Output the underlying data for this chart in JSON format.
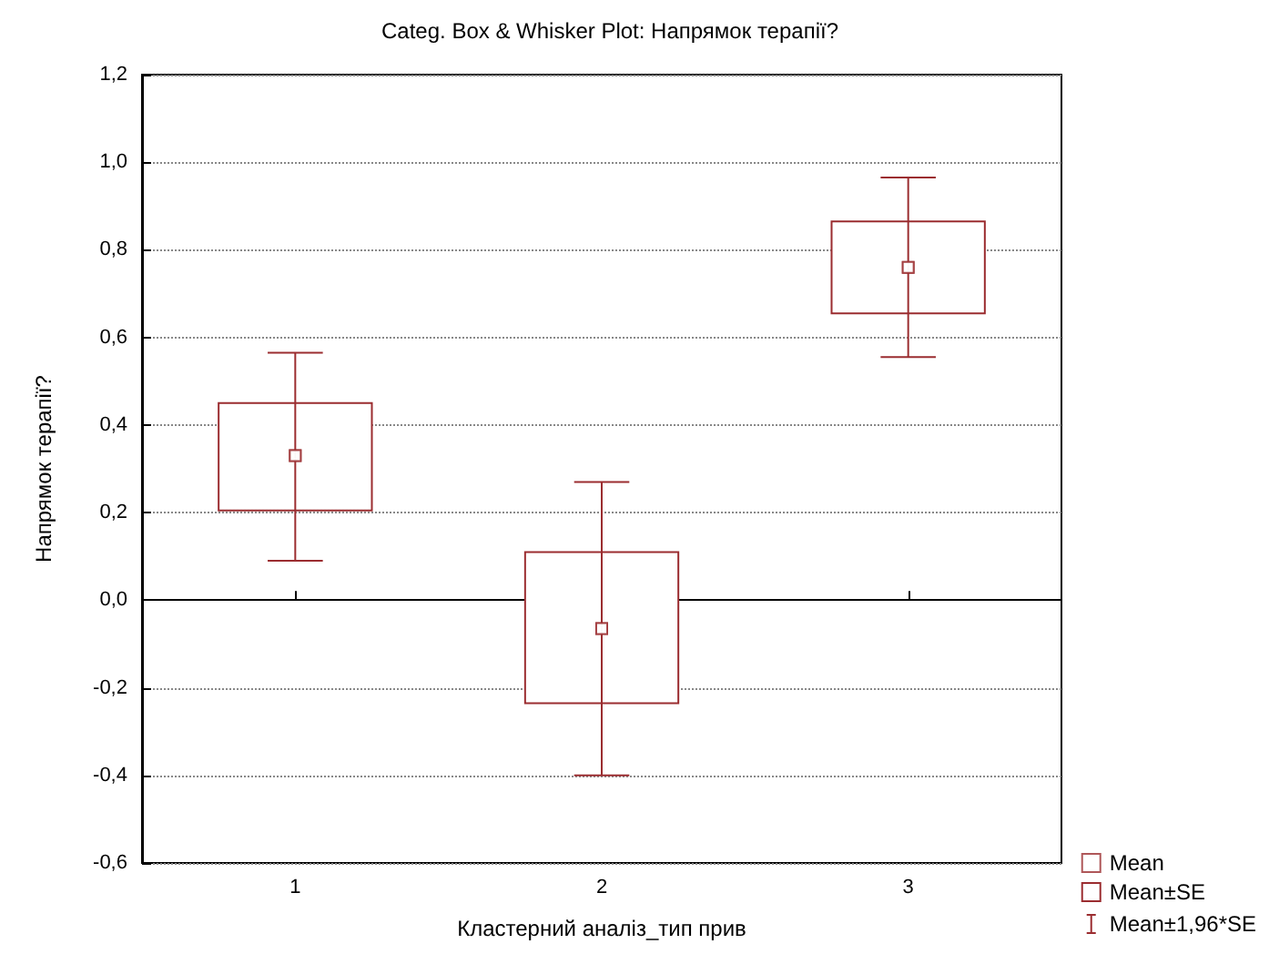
{
  "chart_data": {
    "type": "scatter",
    "title": "Categ. Box & Whisker Plot: Напрямок терапії?",
    "xlabel": "Кластерний аналіз_тип прив",
    "ylabel": "Напрямок терапії?",
    "categories": [
      "1",
      "2",
      "3"
    ],
    "series": [
      {
        "name": "Mean",
        "color": "#9b2d30",
        "marker": "square",
        "values": [
          0.33,
          -0.065,
          0.76
        ]
      },
      {
        "name": "Mean±SE",
        "type": "bar",
        "color": "#9b2d30",
        "base": [
          0.205,
          -0.235,
          0.655
        ],
        "values": [
          0.245,
          0.345,
          0.21
        ]
      },
      {
        "name": "Mean±1,96*SE",
        "color": "#9b2d30",
        "marker": "square",
        "values": [
          0.33,
          -0.065,
          0.76
        ],
        "errors": [
          [
            0.09,
            0.565
          ],
          [
            -0.4,
            0.27
          ],
          [
            0.555,
            0.965
          ]
        ]
      }
    ],
    "ylim": [
      -0.6,
      1.2
    ],
    "yticks": [
      {
        "value": -0.6,
        "label": "-0,6"
      },
      {
        "value": -0.4,
        "label": "-0,4"
      },
      {
        "value": -0.2,
        "label": "-0,2"
      },
      {
        "value": 0,
        "label": "0,0"
      },
      {
        "value": 0.2,
        "label": "0,2"
      },
      {
        "value": 0.4,
        "label": "0,4"
      },
      {
        "value": 0.6,
        "label": "0,6"
      },
      {
        "value": 0.8,
        "label": "0,8"
      },
      {
        "value": 1.0,
        "label": "1,0"
      },
      {
        "value": 1.2,
        "label": "1,2"
      }
    ],
    "grid": "y",
    "legend": "bottom right"
  }
}
